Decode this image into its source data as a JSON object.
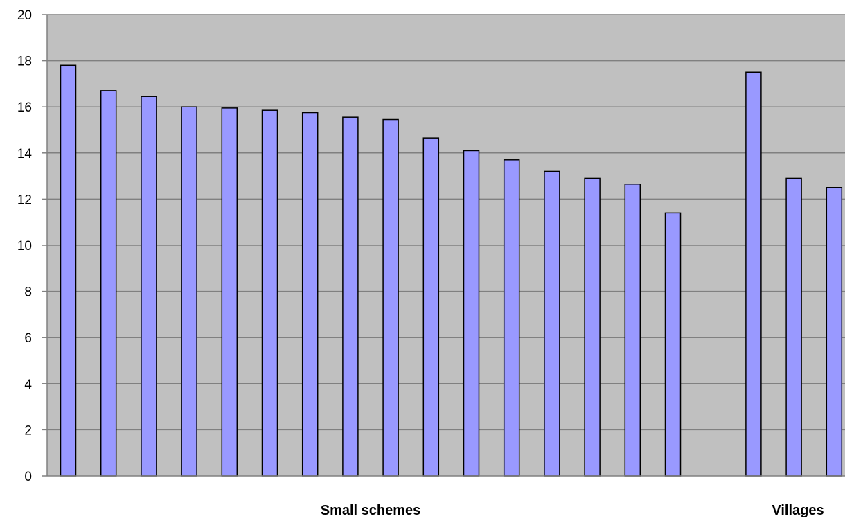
{
  "chart_data": {
    "type": "bar",
    "title": "",
    "xlabel": "",
    "ylabel": "",
    "ylim": [
      0,
      20
    ],
    "yticks": [
      0,
      2,
      4,
      6,
      8,
      10,
      12,
      14,
      16,
      18,
      20
    ],
    "grid": true,
    "legend": "none",
    "colors": {
      "plot_background": "#c0c0c0",
      "bar_fill": "#9999ff",
      "bar_stroke": "#000000",
      "gridline": "#808080"
    },
    "groups": [
      {
        "label": "Small schemes",
        "values": [
          17.8,
          16.7,
          16.45,
          16.0,
          15.95,
          15.85,
          15.75,
          15.55,
          15.45,
          14.65,
          14.1,
          13.7,
          13.2,
          12.9,
          12.65,
          11.4
        ]
      },
      {
        "label": "Villages",
        "values": [
          17.5,
          12.9,
          12.5
        ]
      }
    ]
  }
}
